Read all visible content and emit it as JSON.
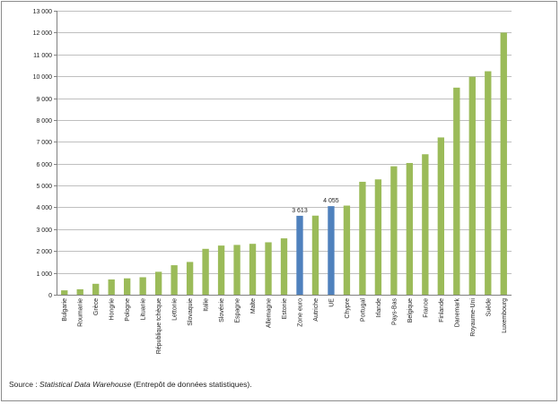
{
  "chart_data": {
    "type": "bar",
    "categories": [
      "Bulgarie",
      "Roumanie",
      "Grèce",
      "Hongrie",
      "Pologne",
      "Lituanie",
      "République tchèque",
      "Lettonie",
      "Slovaquie",
      "Italie",
      "Slovénie",
      "Espagne",
      "Malte",
      "Allemagne",
      "Estonie",
      "Zone euro",
      "Autriche",
      "UE",
      "Chypre",
      "Portugal",
      "Irlande",
      "Pays-Bas",
      "Belgique",
      "France",
      "Finlande",
      "Danemark",
      "Royaume-Uni",
      "Suède",
      "Luxembourg"
    ],
    "values": [
      200,
      250,
      500,
      700,
      750,
      800,
      1050,
      1350,
      1500,
      2100,
      2250,
      2280,
      2330,
      2400,
      2580,
      3613,
      3620,
      4055,
      4080,
      5170,
      5280,
      5880,
      6030,
      6430,
      7200,
      9480,
      9980,
      10230,
      12000
    ],
    "highlight": [
      "Zone euro",
      "UE"
    ],
    "data_labels": {
      "Zone euro": "3 613",
      "UE": "4 055"
    },
    "ylim": [
      0,
      13000
    ],
    "yticks": [
      "0",
      "1 000",
      "2 000",
      "3 000",
      "4 000",
      "5 000",
      "6 000",
      "7 000",
      "8 000",
      "9 000",
      "10 000",
      "11 000",
      "12 000",
      "13 000"
    ],
    "grid": true,
    "legend": "none",
    "title": "",
    "xlabel": "",
    "ylabel": "",
    "colors": {
      "bar": "#9bbb59",
      "highlight": "#4f81bd",
      "grid": "#bfbfbf",
      "axis": "#808080"
    }
  },
  "source": {
    "prefix": "Source : ",
    "name": "Statistical Data Warehouse",
    "suffix": " (Entrepôt de données statistiques)."
  }
}
